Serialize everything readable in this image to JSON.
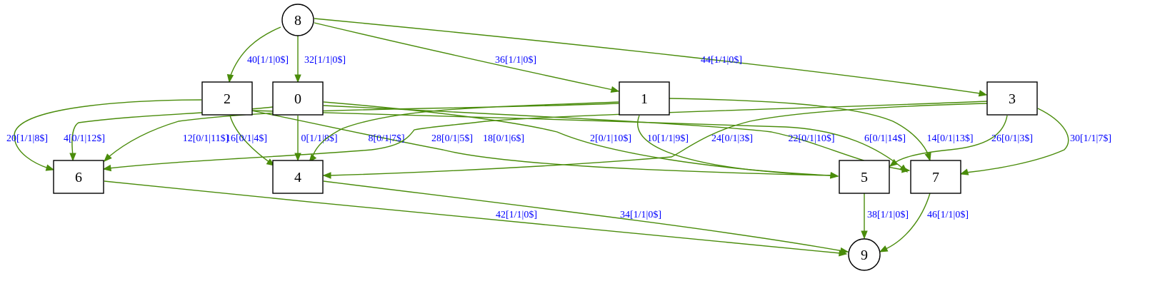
{
  "colors": {
    "edge": "#4a8c0b",
    "label": "#0000ff",
    "node_stroke": "#000000"
  },
  "nodes": [
    {
      "id": "8",
      "label": "8",
      "shape": "circle"
    },
    {
      "id": "2",
      "label": "2",
      "shape": "box"
    },
    {
      "id": "0",
      "label": "0",
      "shape": "box"
    },
    {
      "id": "1",
      "label": "1",
      "shape": "box"
    },
    {
      "id": "3",
      "label": "3",
      "shape": "box"
    },
    {
      "id": "6",
      "label": "6",
      "shape": "box"
    },
    {
      "id": "4",
      "label": "4",
      "shape": "box"
    },
    {
      "id": "5",
      "label": "5",
      "shape": "box"
    },
    {
      "id": "7",
      "label": "7",
      "shape": "box"
    },
    {
      "id": "9",
      "label": "9",
      "shape": "circle"
    }
  ],
  "edges": [
    {
      "id": "e40",
      "from": "8",
      "to": "2",
      "label": "40[1/1|0$]"
    },
    {
      "id": "e32",
      "from": "8",
      "to": "0",
      "label": "32[1/1|0$]"
    },
    {
      "id": "e36",
      "from": "8",
      "to": "1",
      "label": "36[1/1|0$]"
    },
    {
      "id": "e44",
      "from": "8",
      "to": "3",
      "label": "44[1/1|0$]"
    },
    {
      "id": "e20",
      "from": "2",
      "to": "6",
      "label": "20[1/1|8$]"
    },
    {
      "id": "e16",
      "from": "2",
      "to": "4",
      "label": "16[0/1|4$]"
    },
    {
      "id": "e18",
      "from": "2",
      "to": "5",
      "label": "18[0/1|6$]"
    },
    {
      "id": "e4",
      "from": "0",
      "to": "6",
      "label": "4[0/1|12$]"
    },
    {
      "id": "e0",
      "from": "0",
      "to": "4",
      "label": "0[1/1|8$]"
    },
    {
      "id": "e2",
      "from": "0",
      "to": "5",
      "label": "2[0/1|10$]"
    },
    {
      "id": "e22",
      "from": "0",
      "to": "7",
      "label": "22[0/1|10$]"
    },
    {
      "id": "e12",
      "from": "1",
      "to": "6",
      "label": "12[0/1|11$]"
    },
    {
      "id": "e8",
      "from": "1",
      "to": "4",
      "label": "8[0/1|7$]"
    },
    {
      "id": "e10",
      "from": "1",
      "to": "5",
      "label": "10[1/1|9$]"
    },
    {
      "id": "e14",
      "from": "1",
      "to": "7",
      "label": "14[0/1|13$]"
    },
    {
      "id": "e28",
      "from": "3",
      "to": "6",
      "label": "28[0/1|5$]"
    },
    {
      "id": "e24",
      "from": "3",
      "to": "4",
      "label": "24[0/1|3$]"
    },
    {
      "id": "e26",
      "from": "3",
      "to": "5",
      "label": "26[0/1|3$]"
    },
    {
      "id": "e30",
      "from": "3",
      "to": "7",
      "label": "30[1/1|7$]"
    },
    {
      "id": "e6",
      "from": "2",
      "to": "7",
      "label": "6[0/1|14$]"
    },
    {
      "id": "e42",
      "from": "6",
      "to": "9",
      "label": "42[1/1|0$]"
    },
    {
      "id": "e34",
      "from": "4",
      "to": "9",
      "label": "34[1/1|0$]"
    },
    {
      "id": "e38",
      "from": "5",
      "to": "9",
      "label": "38[1/1|0$]"
    },
    {
      "id": "e46",
      "from": "7",
      "to": "9",
      "label": "46[1/1|0$]"
    }
  ]
}
